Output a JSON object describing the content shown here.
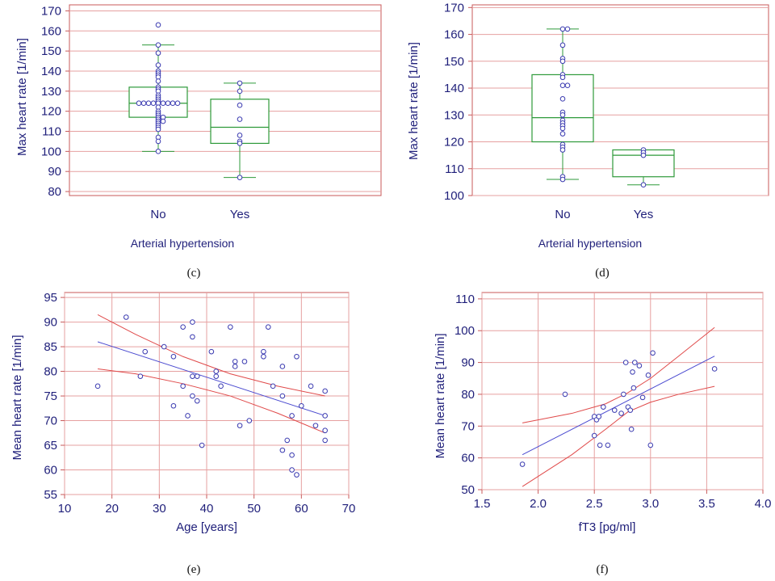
{
  "captions": {
    "c": "(c)",
    "d": "(d)",
    "e": "(e)",
    "f": "(f)"
  },
  "chart_data": [
    {
      "id": "c",
      "type": "box",
      "ylabel": "Max heart rate [1/min]",
      "xlabel": "Arterial hypertension",
      "categories": [
        "No",
        "Yes"
      ],
      "ylim": [
        78,
        173
      ],
      "yticks": [
        80,
        90,
        100,
        110,
        120,
        130,
        140,
        150,
        160,
        170
      ],
      "grid": true,
      "boxes": [
        {
          "category": "No",
          "min": 100,
          "q1": 117,
          "median": 124,
          "q3": 132,
          "max": 153
        },
        {
          "category": "Yes",
          "min": 87,
          "q1": 104,
          "median": 112,
          "q3": 126,
          "max": 134
        }
      ],
      "points": [
        {
          "category": "No",
          "values": [
            163,
            153,
            149,
            143,
            140,
            139,
            138,
            137,
            135,
            132,
            131,
            130,
            128,
            127,
            126,
            125,
            124,
            124,
            124,
            124,
            124,
            124,
            124,
            124,
            124,
            122,
            120,
            119,
            118,
            117,
            117,
            116,
            115,
            115,
            114,
            113,
            112,
            111,
            107,
            105,
            100
          ]
        },
        {
          "category": "Yes",
          "values": [
            134,
            130,
            123,
            116,
            108,
            105,
            104,
            87
          ]
        }
      ]
    },
    {
      "id": "d",
      "type": "box",
      "ylabel": "Max heart rate [1/min]",
      "xlabel": "Arterial hypertension",
      "categories": [
        "No",
        "Yes"
      ],
      "ylim": [
        100,
        171
      ],
      "yticks": [
        100,
        110,
        120,
        130,
        140,
        150,
        160,
        170
      ],
      "grid": true,
      "boxes": [
        {
          "category": "No",
          "min": 106,
          "q1": 120,
          "median": 129,
          "q3": 145,
          "max": 162
        },
        {
          "category": "Yes",
          "min": 104,
          "q1": 107,
          "median": 115,
          "q3": 117,
          "max": 117
        }
      ],
      "points": [
        {
          "category": "No",
          "values": [
            162,
            162,
            156,
            151,
            150,
            145,
            144,
            141,
            141,
            136,
            131,
            130,
            128,
            127,
            126,
            125,
            123,
            119,
            118,
            117,
            107,
            106
          ]
        },
        {
          "category": "Yes",
          "values": [
            117,
            116,
            115,
            104
          ]
        }
      ]
    },
    {
      "id": "e",
      "type": "scatter",
      "xlabel": "Age [years]",
      "ylabel": "Mean heart rate [1/min]",
      "xlim": [
        10,
        70
      ],
      "ylim": [
        55,
        96
      ],
      "xticks": [
        10,
        20,
        30,
        40,
        50,
        60,
        70
      ],
      "yticks": [
        55,
        60,
        65,
        70,
        75,
        80,
        85,
        90,
        95
      ],
      "grid": true,
      "points": [
        [
          17,
          77
        ],
        [
          23,
          91
        ],
        [
          26,
          79
        ],
        [
          27,
          84
        ],
        [
          31,
          85
        ],
        [
          33,
          83
        ],
        [
          33,
          73
        ],
        [
          35,
          89
        ],
        [
          35,
          77
        ],
        [
          36,
          71
        ],
        [
          37,
          90
        ],
        [
          37,
          87
        ],
        [
          37,
          79
        ],
        [
          37,
          75
        ],
        [
          38,
          79
        ],
        [
          38,
          74
        ],
        [
          39,
          65
        ],
        [
          41,
          84
        ],
        [
          42,
          80
        ],
        [
          42,
          79
        ],
        [
          43,
          77
        ],
        [
          45,
          89
        ],
        [
          46,
          82
        ],
        [
          46,
          81
        ],
        [
          47,
          69
        ],
        [
          48,
          82
        ],
        [
          49,
          70
        ],
        [
          52,
          84
        ],
        [
          52,
          83
        ],
        [
          53,
          89
        ],
        [
          54,
          77
        ],
        [
          56,
          81
        ],
        [
          56,
          75
        ],
        [
          56,
          64
        ],
        [
          57,
          66
        ],
        [
          58,
          71
        ],
        [
          58,
          63
        ],
        [
          58,
          60
        ],
        [
          59,
          83
        ],
        [
          59,
          59
        ],
        [
          60,
          73
        ],
        [
          62,
          77
        ],
        [
          63,
          69
        ],
        [
          65,
          76
        ],
        [
          65,
          71
        ],
        [
          65,
          68
        ],
        [
          65,
          66
        ]
      ],
      "regression": {
        "x": [
          17,
          65
        ],
        "y": [
          86,
          71
        ]
      },
      "ci_upper": {
        "x": [
          17,
          25,
          35,
          45,
          55,
          65
        ],
        "y": [
          91.5,
          87.5,
          83,
          79.5,
          77,
          75
        ]
      },
      "ci_lower": {
        "x": [
          17,
          25,
          35,
          45,
          55,
          65
        ],
        "y": [
          80.5,
          79.5,
          77.5,
          75,
          71.5,
          67.5
        ]
      }
    },
    {
      "id": "f",
      "type": "scatter",
      "xlabel": "fT3 [pg/ml]",
      "ylabel": "Mean heart rate [1/min]",
      "xlim": [
        1.5,
        4.0
      ],
      "ylim": [
        50,
        112
      ],
      "xticks": [
        "1.5",
        "2.0",
        "2.5",
        "3.0",
        "3.5",
        "4.0"
      ],
      "yticks": [
        50,
        60,
        70,
        80,
        90,
        100,
        110
      ],
      "grid": true,
      "points": [
        [
          1.86,
          58
        ],
        [
          2.24,
          80
        ],
        [
          2.5,
          73
        ],
        [
          2.5,
          67
        ],
        [
          2.52,
          72
        ],
        [
          2.54,
          73
        ],
        [
          2.55,
          64
        ],
        [
          2.58,
          76
        ],
        [
          2.62,
          64
        ],
        [
          2.68,
          75
        ],
        [
          2.74,
          74
        ],
        [
          2.76,
          80
        ],
        [
          2.78,
          90
        ],
        [
          2.8,
          76
        ],
        [
          2.82,
          75
        ],
        [
          2.83,
          69
        ],
        [
          2.84,
          87
        ],
        [
          2.85,
          82
        ],
        [
          2.86,
          90
        ],
        [
          2.9,
          89
        ],
        [
          2.93,
          79
        ],
        [
          2.98,
          86
        ],
        [
          3.0,
          64
        ],
        [
          3.02,
          93
        ],
        [
          3.57,
          88
        ]
      ],
      "regression": {
        "x": [
          1.86,
          3.57
        ],
        "y": [
          61,
          92
        ]
      },
      "ci_upper": {
        "x": [
          1.86,
          2.3,
          2.6,
          2.8,
          3.0,
          3.25,
          3.57
        ],
        "y": [
          71,
          74,
          77,
          80.5,
          85,
          92,
          101
        ]
      },
      "ci_lower": {
        "x": [
          1.86,
          2.3,
          2.6,
          2.8,
          3.0,
          3.25,
          3.57
        ],
        "y": [
          51,
          61,
          69,
          74.5,
          77.5,
          80,
          82.5
        ]
      }
    }
  ]
}
